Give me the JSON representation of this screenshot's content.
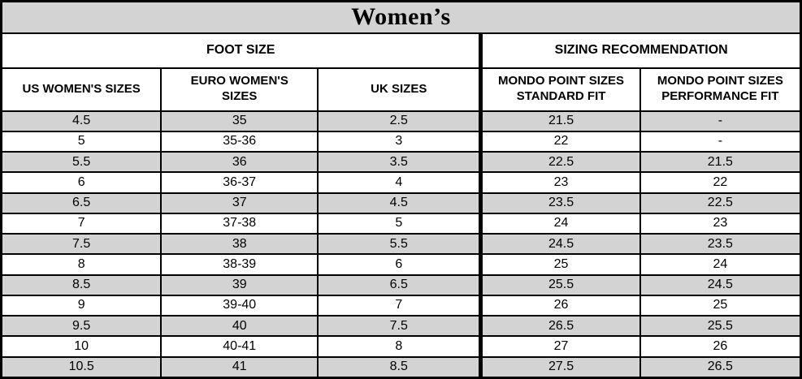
{
  "colors": {
    "stripe_gray": "#d3d3d3",
    "border_black": "#000000",
    "background_white": "#ffffff"
  },
  "table": {
    "title": "Women’s",
    "section_headers": [
      {
        "label": "FOOT SIZE",
        "span": 3
      },
      {
        "label": "SIZING RECOMMENDATION",
        "span": 2
      }
    ],
    "columns": [
      "US WOMEN'S SIZES",
      "EURO WOMEN'S SIZES",
      "UK SIZES",
      "MONDO POINT SIZES STANDARD FIT",
      "MONDO POINT SIZES PERFORMANCE FIT"
    ],
    "rows": [
      [
        "4.5",
        "35",
        "2.5",
        "21.5",
        "-"
      ],
      [
        "5",
        "35-36",
        "3",
        "22",
        "-"
      ],
      [
        "5.5",
        "36",
        "3.5",
        "22.5",
        "21.5"
      ],
      [
        "6",
        "36-37",
        "4",
        "23",
        "22"
      ],
      [
        "6.5",
        "37",
        "4.5",
        "23.5",
        "22.5"
      ],
      [
        "7",
        "37-38",
        "5",
        "24",
        "23"
      ],
      [
        "7.5",
        "38",
        "5.5",
        "24.5",
        "23.5"
      ],
      [
        "8",
        "38-39",
        "6",
        "25",
        "24"
      ],
      [
        "8.5",
        "39",
        "6.5",
        "25.5",
        "24.5"
      ],
      [
        "9",
        "39-40",
        "7",
        "26",
        "25"
      ],
      [
        "9.5",
        "40",
        "7.5",
        "26.5",
        "25.5"
      ],
      [
        "10",
        "40-41",
        "8",
        "27",
        "26"
      ],
      [
        "10.5",
        "41",
        "8.5",
        "27.5",
        "26.5"
      ]
    ]
  },
  "chart_data": {
    "type": "table",
    "title": "Women's",
    "section_groups": [
      {
        "label": "FOOT SIZE",
        "columns": [
          "US WOMEN'S SIZES",
          "EURO WOMEN'S SIZES",
          "UK SIZES"
        ]
      },
      {
        "label": "SIZING RECOMMENDATION",
        "columns": [
          "MONDO POINT SIZES STANDARD FIT",
          "MONDO POINT SIZES PERFORMANCE FIT"
        ]
      }
    ],
    "columns": [
      "US WOMEN'S SIZES",
      "EURO WOMEN'S SIZES",
      "UK SIZES",
      "MONDO POINT SIZES STANDARD FIT",
      "MONDO POINT SIZES PERFORMANCE FIT"
    ],
    "rows": [
      [
        "4.5",
        "35",
        "2.5",
        "21.5",
        "-"
      ],
      [
        "5",
        "35-36",
        "3",
        "22",
        "-"
      ],
      [
        "5.5",
        "36",
        "3.5",
        "22.5",
        "21.5"
      ],
      [
        "6",
        "36-37",
        "4",
        "23",
        "22"
      ],
      [
        "6.5",
        "37",
        "4.5",
        "23.5",
        "22.5"
      ],
      [
        "7",
        "37-38",
        "5",
        "24",
        "23"
      ],
      [
        "7.5",
        "38",
        "5.5",
        "24.5",
        "23.5"
      ],
      [
        "8",
        "38-39",
        "6",
        "25",
        "24"
      ],
      [
        "8.5",
        "39",
        "6.5",
        "25.5",
        "24.5"
      ],
      [
        "9",
        "39-40",
        "7",
        "26",
        "25"
      ],
      [
        "9.5",
        "40",
        "7.5",
        "26.5",
        "25.5"
      ],
      [
        "10",
        "40-41",
        "8",
        "27",
        "26"
      ],
      [
        "10.5",
        "41",
        "8.5",
        "27.5",
        "26.5"
      ]
    ],
    "layout_hints": {
      "striped_rows": "odd data rows shaded gray starting with first row",
      "thick_divider_after_column": 3
    }
  }
}
